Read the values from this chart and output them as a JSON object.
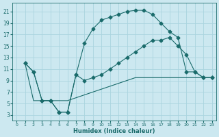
{
  "xlabel": "Humidex (Indice chaleur)",
  "bg_color": "#cce8f0",
  "grid_color": "#aad4df",
  "line_color": "#1a6b6b",
  "xlim": [
    -0.5,
    23.5
  ],
  "ylim": [
    2,
    22.5
  ],
  "xticks": [
    0,
    1,
    2,
    3,
    4,
    5,
    6,
    7,
    8,
    9,
    10,
    11,
    12,
    13,
    14,
    15,
    16,
    17,
    18,
    19,
    20,
    21,
    22,
    23
  ],
  "yticks": [
    3,
    5,
    7,
    9,
    11,
    13,
    15,
    17,
    19,
    21
  ],
  "curve1_x": [
    1,
    2,
    3,
    4,
    5,
    6,
    7,
    8,
    9,
    10,
    11,
    12,
    13,
    14,
    15,
    16,
    17,
    18,
    19,
    20,
    21,
    22,
    23
  ],
  "curve1_y": [
    12,
    10.5,
    5.5,
    5.5,
    3.5,
    3.5,
    10,
    15.5,
    18,
    19.5,
    20,
    20.5,
    21,
    21.2,
    21.2,
    20.5,
    19,
    17.5,
    16.5,
    10.5,
    10.5,
    9.5,
    9.5
  ],
  "curve2_x": [
    1,
    2,
    3,
    4,
    5,
    6,
    7,
    8,
    9,
    10,
    11,
    12,
    13,
    14,
    15,
    16,
    17,
    18,
    19,
    20,
    21,
    22,
    23
  ],
  "curve2_y": [
    12,
    10.5,
    5.5,
    5.5,
    3.5,
    3.5,
    10,
    9,
    9.5,
    10,
    11,
    12,
    13,
    14,
    15,
    16,
    16,
    16.5,
    15,
    13.5,
    10.5,
    9.5,
    9.5
  ],
  "curve3_x": [
    1,
    2,
    3,
    4,
    5,
    6,
    7,
    8,
    9,
    10,
    11,
    12,
    13,
    14,
    15,
    16,
    17,
    18,
    19,
    20,
    21,
    22,
    23
  ],
  "curve3_y": [
    12,
    5.5,
    5.5,
    5.5,
    5.5,
    5.5,
    6,
    6.5,
    7,
    7.5,
    8,
    8.5,
    9,
    9.5,
    9.5,
    9.5,
    9.5,
    9.5,
    9.5,
    9.5,
    9.5,
    9.5,
    9.5
  ],
  "marker": "D",
  "markersize": 2.5
}
